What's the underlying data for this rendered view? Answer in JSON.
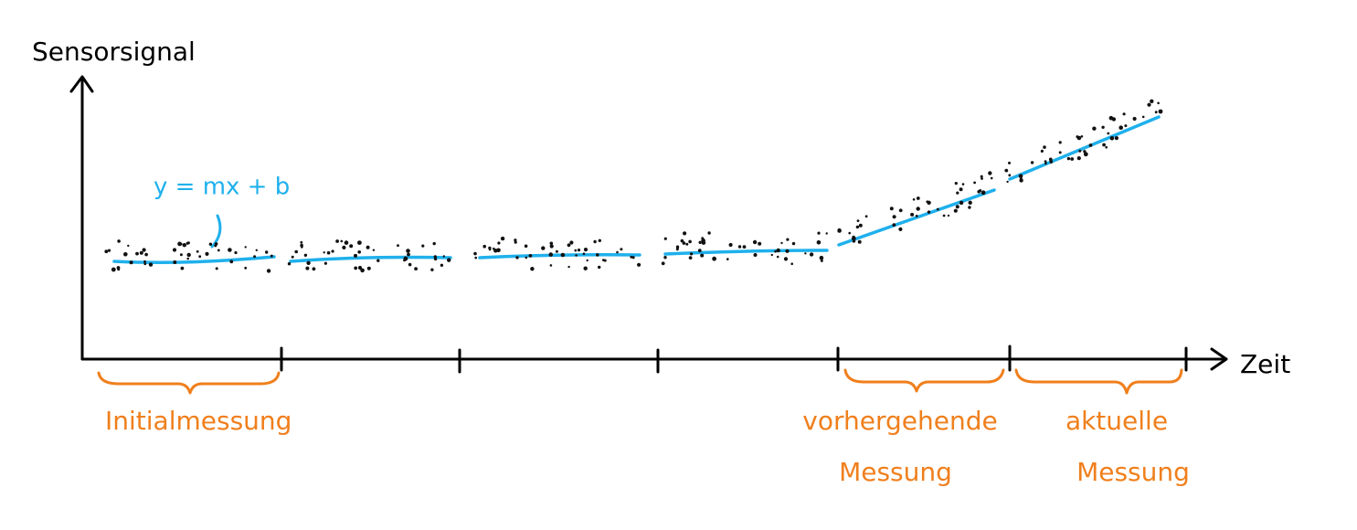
{
  "axes": {
    "y_label": "Sensorsignal",
    "x_label": "Zeit"
  },
  "fit_label": "y = mx + b",
  "segments": [
    {
      "lines": [
        "Initialmessung"
      ]
    },
    {
      "lines": [
        "vorhergehende",
        "Messung"
      ]
    },
    {
      "lines": [
        "aktuelle",
        "Messung"
      ]
    }
  ]
}
